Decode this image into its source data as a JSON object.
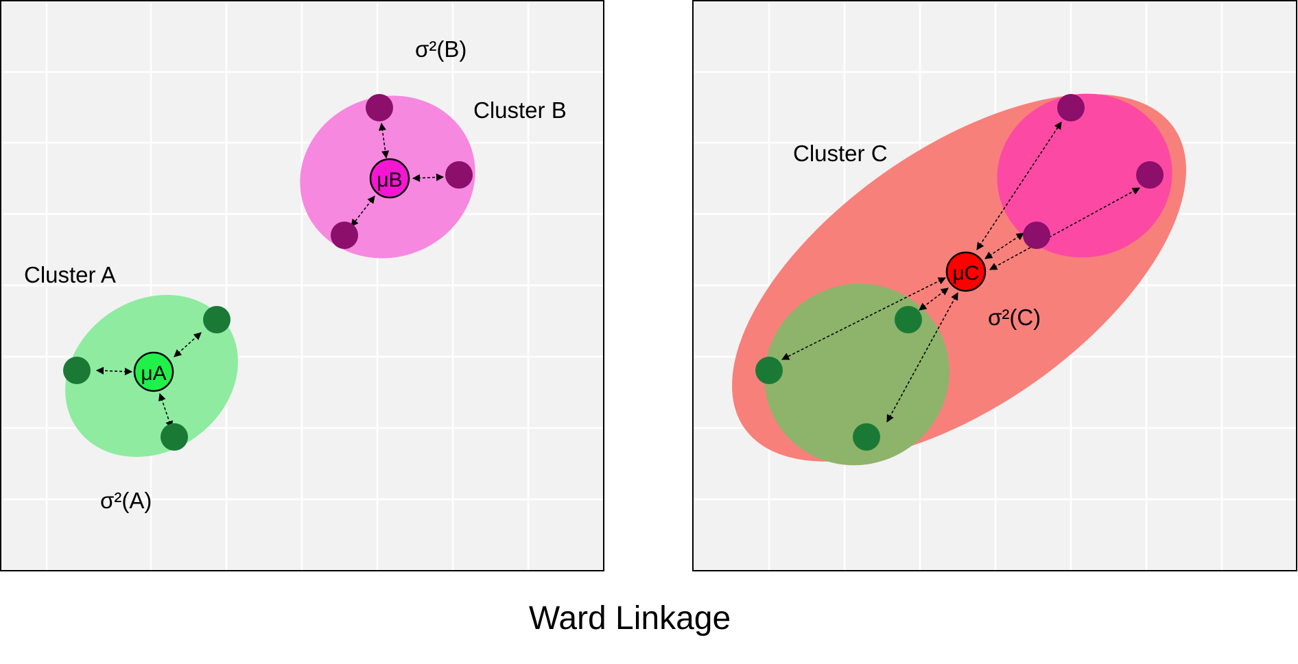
{
  "caption": "Ward Linkage",
  "panel_left": {
    "cluster_a": {
      "label": "Cluster A",
      "variance": "σ²(A)",
      "centroid": "μA"
    },
    "cluster_b": {
      "label": "Cluster B",
      "variance": "σ²(B)",
      "centroid": "μB"
    }
  },
  "panel_right": {
    "cluster_c": {
      "label": "Cluster C",
      "variance": "σ²(C)",
      "centroid": "μC"
    }
  },
  "colors": {
    "panel_bg": "#f2f2f2",
    "grid": "#ffffff",
    "cluster_a_fill": "#8eeba0",
    "cluster_b_fill": "#f688df",
    "cluster_c_fill": "#f8807a",
    "cluster_c_sub_a": "#8db46a",
    "cluster_c_sub_b": "#fc4aa4",
    "green_point": "#1a7a35",
    "purple_point": "#8b0f6b",
    "centroid_a": "#22f04a",
    "centroid_b": "#f515d2",
    "centroid_c": "#ff0000"
  }
}
